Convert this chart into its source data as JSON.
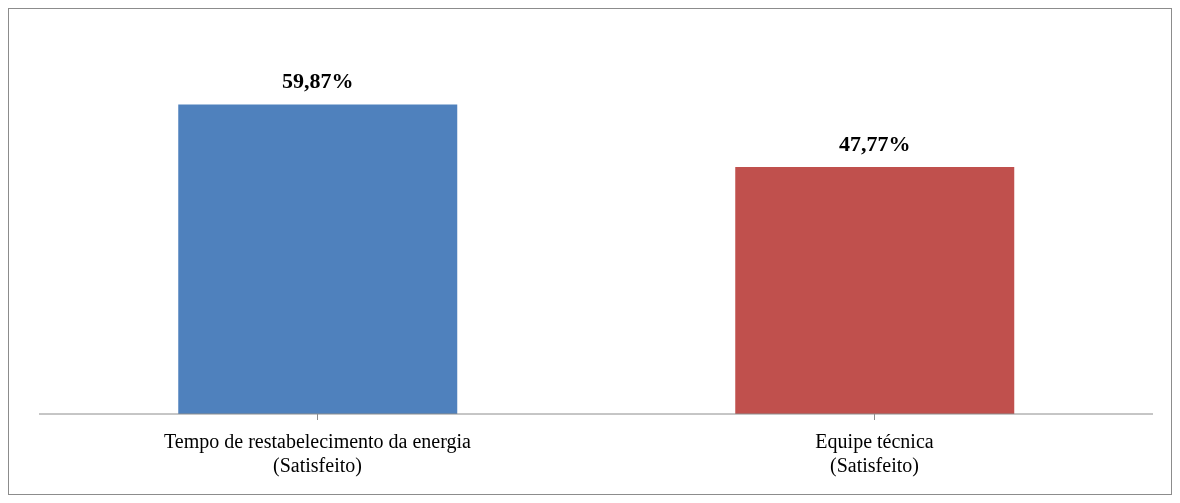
{
  "chart_data": {
    "type": "bar",
    "categories": [
      "Tempo de restabelecimento da energia\n(Satisfeito)",
      "Equipe técnica\n(Satisfeito)"
    ],
    "values": [
      59.87,
      47.77
    ],
    "colors": [
      "#4f81bd",
      "#c0504d"
    ],
    "value_labels": [
      "59,87%",
      "47,77%"
    ]
  }
}
